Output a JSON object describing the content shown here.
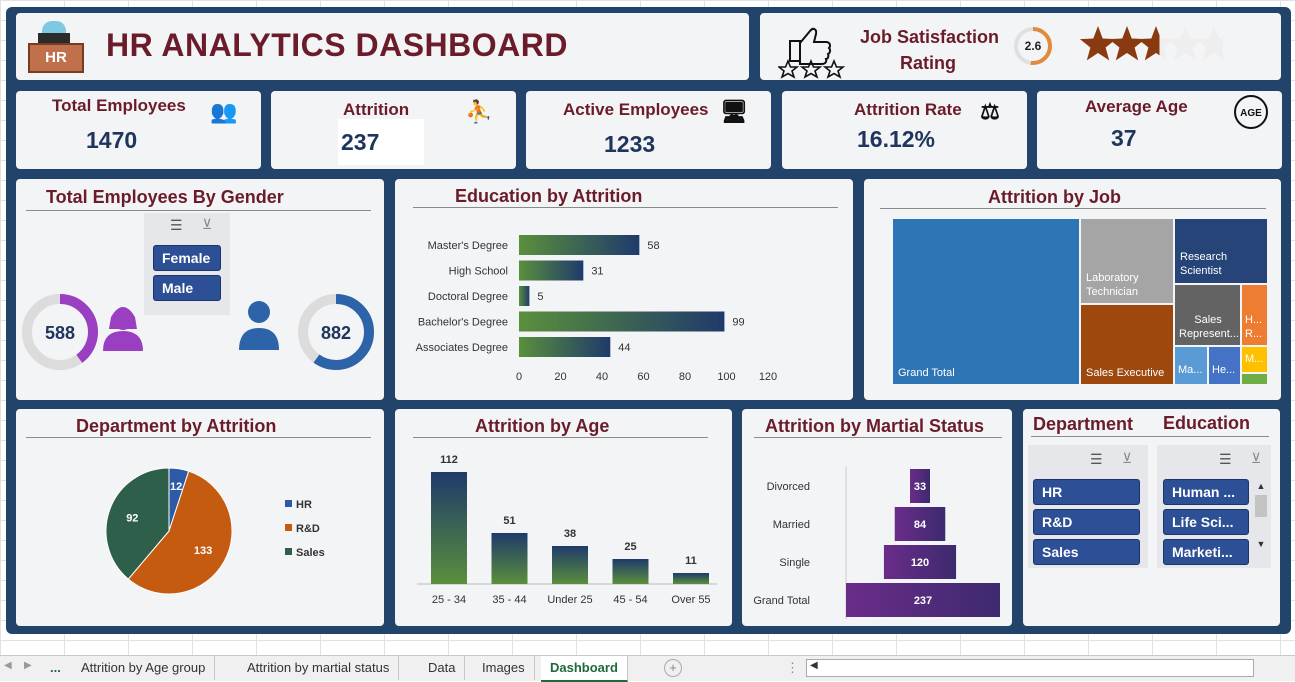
{
  "header": {
    "title": "HR ANALYTICS DASHBOARD",
    "logo_text": "HR"
  },
  "satisfaction": {
    "label_line1": "Job Satisfaction",
    "label_line2": "Rating",
    "value": "2.6",
    "stars_filled": 2.6,
    "stars_total": 5
  },
  "kpis": [
    {
      "label": "Total Employees",
      "value": "1470",
      "icon": "people-group-icon"
    },
    {
      "label": "Attrition",
      "value": "237",
      "icon": "people-leaving-icon"
    },
    {
      "label": "Active Employees",
      "value": "1233",
      "icon": "person-at-desk-icon"
    },
    {
      "label": "Attrition Rate",
      "value": "16.12%",
      "icon": "balance-person-icon"
    },
    {
      "label": "Average Age",
      "value": "37",
      "icon": "age-icon"
    }
  ],
  "gender": {
    "title": "Total Employees By Gender",
    "slicer": [
      "Female",
      "Male"
    ],
    "female_value": "588",
    "male_value": "882",
    "female_fraction": 0.4,
    "male_fraction": 0.6,
    "female_color": "#9b3fc2",
    "male_color": "#2d63a8"
  },
  "education_chart": {
    "title": "Education by Attrition",
    "chart_data": {
      "type": "bar",
      "orientation": "horizontal",
      "categories": [
        "Master's Degree",
        "High School",
        "Doctoral Degree",
        "Bachelor's Degree",
        "Associates Degree"
      ],
      "values": [
        58,
        31,
        5,
        99,
        44
      ],
      "value_labels": [
        "58",
        "31",
        "5",
        "99",
        "44"
      ],
      "xticks": [
        "0",
        "20",
        "40",
        "60",
        "80",
        "100",
        "120"
      ],
      "xlim": [
        0,
        120
      ]
    }
  },
  "job_chart": {
    "title": "Attrition by Job",
    "chart_data": {
      "type": "treemap",
      "labels": [
        "Grand Total",
        "Laboratory Technician",
        "Sales Executive",
        "Research Scientist",
        "Sales Represent...",
        "H... R...",
        "Ma...",
        "He...",
        "M..."
      ]
    }
  },
  "department_chart": {
    "title": "Department by Attrition",
    "chart_data": {
      "type": "pie",
      "categories": [
        "HR",
        "R&D",
        "Sales"
      ],
      "values": [
        12,
        133,
        92
      ],
      "value_labels": [
        "12",
        "133",
        "92"
      ],
      "colors": [
        "#2d5aa6",
        "#c55a11",
        "#2e5f4a"
      ],
      "legend": "right"
    }
  },
  "age_chart": {
    "title": "Attrition by Age",
    "chart_data": {
      "type": "bar",
      "categories": [
        "25 - 34",
        "35 - 44",
        "Under 25",
        "45 - 54",
        "Over 55"
      ],
      "values": [
        112,
        51,
        38,
        25,
        11
      ],
      "value_labels": [
        "112",
        "51",
        "38",
        "25",
        "11"
      ]
    }
  },
  "marital_chart": {
    "title": "Attrition by Martial Status",
    "chart_data": {
      "type": "bar",
      "orientation": "horizontal-centered",
      "categories": [
        "Divorced",
        "Married",
        "Single",
        "Grand Total"
      ],
      "values": [
        33,
        84,
        120,
        237
      ],
      "value_labels": [
        "33",
        "84",
        "120",
        "237"
      ]
    }
  },
  "slicers": {
    "department_title": "Department",
    "education_title": "Education",
    "department_items": [
      "HR",
      "R&D",
      "Sales"
    ],
    "education_items": [
      "Human ...",
      "Life Sci...",
      "Marketi..."
    ]
  },
  "tabs": {
    "ellipsis": "...",
    "items": [
      "Attrition by Age group",
      "Attrition by martial status",
      "Data",
      "Images",
      "Dashboard"
    ],
    "active": "Dashboard"
  }
}
